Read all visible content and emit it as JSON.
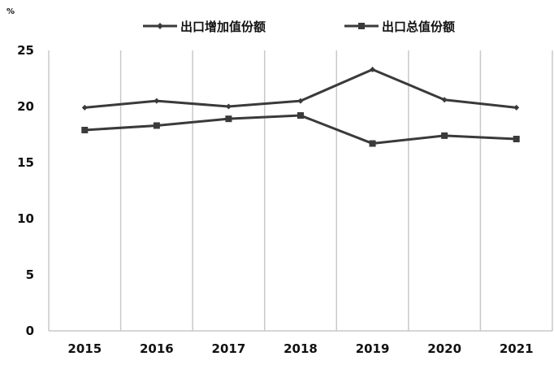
{
  "chart_data": {
    "type": "line",
    "unit_label": "%",
    "categories": [
      "2015",
      "2016",
      "2017",
      "2018",
      "2019",
      "2020",
      "2021"
    ],
    "series": [
      {
        "name": "出口增加值份额",
        "marker": "diamond",
        "color": "#3a3a3a",
        "values": [
          19.9,
          20.5,
          20.0,
          20.5,
          23.3,
          20.6,
          19.9
        ]
      },
      {
        "name": "出口总值份额",
        "marker": "square",
        "color": "#3a3a3a",
        "values": [
          17.9,
          18.3,
          18.9,
          19.2,
          16.7,
          17.4,
          17.1
        ]
      }
    ],
    "ylim": [
      0,
      25
    ],
    "yticks": [
      "0",
      "5",
      "10",
      "15",
      "20",
      "25"
    ],
    "grid": "vertical",
    "legend_position": "top-center"
  }
}
